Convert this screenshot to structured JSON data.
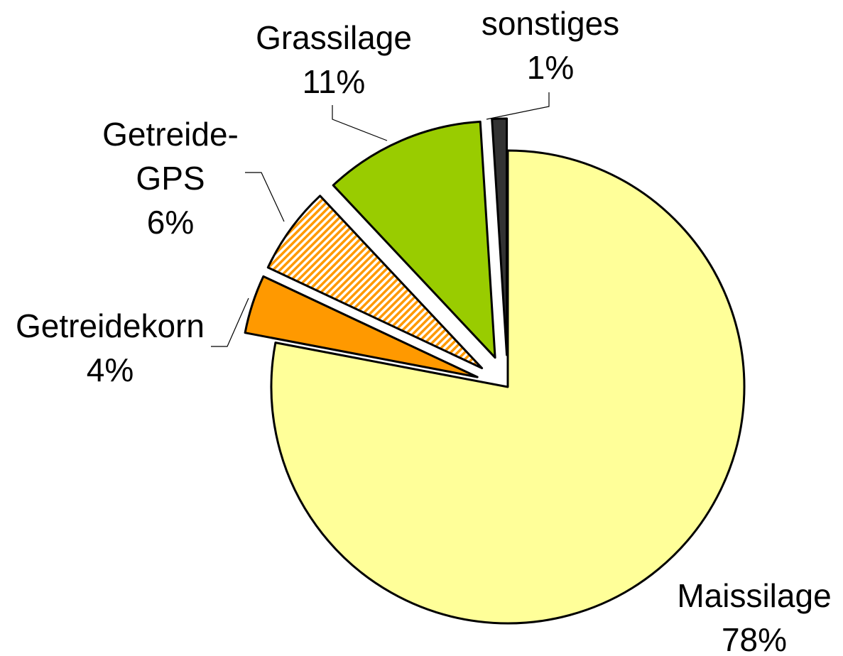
{
  "chart_data": {
    "type": "pie",
    "categories": [
      "Maissilage",
      "Getreidekorn",
      "Getreide-GPS",
      "Grassilage",
      "sonstiges"
    ],
    "values": [
      78,
      4,
      6,
      11,
      1
    ],
    "value_labels": [
      "78%",
      "4%",
      "6%",
      "11%",
      "1%"
    ],
    "colors": [
      "#ffff99",
      "#ff9900",
      "#ff9900",
      "#99cc00",
      "#333333"
    ],
    "hatched": [
      false,
      false,
      true,
      false,
      false
    ]
  }
}
